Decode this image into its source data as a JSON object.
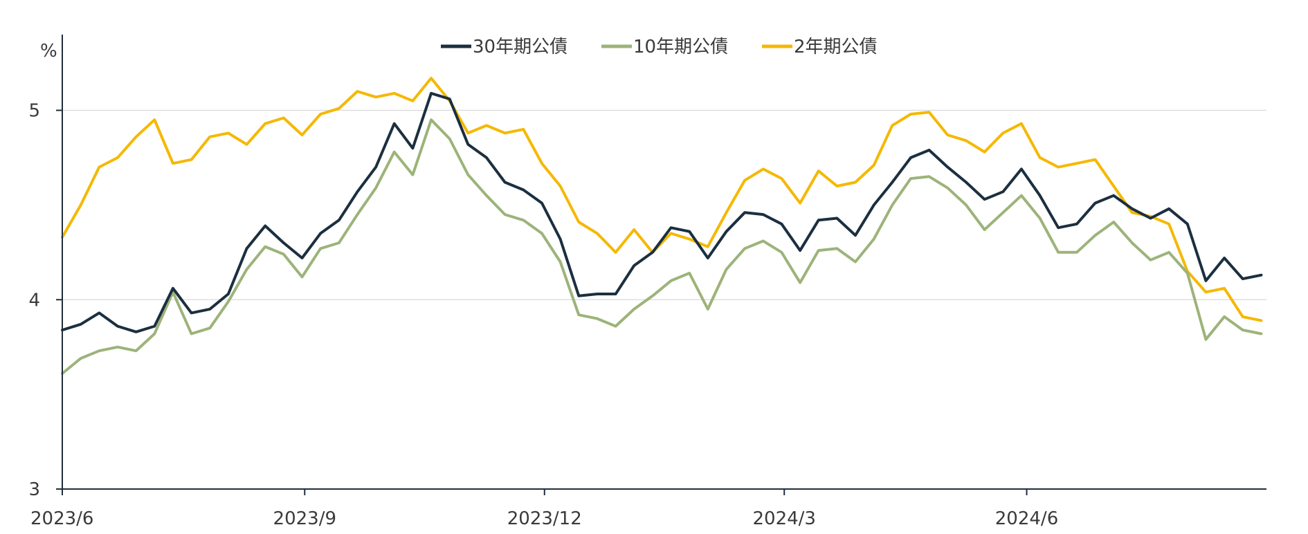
{
  "chart_data": {
    "type": "line",
    "ylabel": "%",
    "ylim": [
      3,
      5.4
    ],
    "yticks": [
      3,
      4,
      5
    ],
    "x_start": "2023/6",
    "x_end": "2024/8",
    "xticks": [
      "2023/6",
      "2023/9",
      "2023/12",
      "2024/3",
      "2024/6"
    ],
    "grid": "horizontal",
    "legend_position": "top-center",
    "series": [
      {
        "name": "30年期公債",
        "color": "#1b2f3f",
        "points": [
          [
            "2023/6/1",
            3.84
          ],
          [
            "2023/6/8",
            3.87
          ],
          [
            "2023/6/15",
            3.93
          ],
          [
            "2023/6/22",
            3.86
          ],
          [
            "2023/6/29",
            3.83
          ],
          [
            "2023/7/6",
            3.86
          ],
          [
            "2023/7/13",
            4.06
          ],
          [
            "2023/7/20",
            3.93
          ],
          [
            "2023/7/27",
            3.95
          ],
          [
            "2023/8/3",
            4.03
          ],
          [
            "2023/8/10",
            4.27
          ],
          [
            "2023/8/17",
            4.39
          ],
          [
            "2023/8/24",
            4.3
          ],
          [
            "2023/8/31",
            4.22
          ],
          [
            "2023/9/7",
            4.35
          ],
          [
            "2023/9/14",
            4.42
          ],
          [
            "2023/9/21",
            4.57
          ],
          [
            "2023/9/28",
            4.7
          ],
          [
            "2023/10/5",
            4.93
          ],
          [
            "2023/10/12",
            4.8
          ],
          [
            "2023/10/19",
            5.09
          ],
          [
            "2023/10/26",
            5.06
          ],
          [
            "2023/11/2",
            4.82
          ],
          [
            "2023/11/9",
            4.75
          ],
          [
            "2023/11/16",
            4.62
          ],
          [
            "2023/11/23",
            4.58
          ],
          [
            "2023/11/30",
            4.51
          ],
          [
            "2023/12/7",
            4.32
          ],
          [
            "2023/12/14",
            4.02
          ],
          [
            "2023/12/21",
            4.03
          ],
          [
            "2023/12/28",
            4.03
          ],
          [
            "2024/1/4",
            4.18
          ],
          [
            "2024/1/11",
            4.25
          ],
          [
            "2024/1/18",
            4.38
          ],
          [
            "2024/1/25",
            4.36
          ],
          [
            "2024/2/1",
            4.22
          ],
          [
            "2024/2/8",
            4.36
          ],
          [
            "2024/2/15",
            4.46
          ],
          [
            "2024/2/22",
            4.45
          ],
          [
            "2024/2/29",
            4.4
          ],
          [
            "2024/3/7",
            4.26
          ],
          [
            "2024/3/14",
            4.42
          ],
          [
            "2024/3/21",
            4.43
          ],
          [
            "2024/3/28",
            4.34
          ],
          [
            "2024/4/4",
            4.5
          ],
          [
            "2024/4/11",
            4.62
          ],
          [
            "2024/4/18",
            4.75
          ],
          [
            "2024/4/25",
            4.79
          ],
          [
            "2024/5/2",
            4.7
          ],
          [
            "2024/5/9",
            4.62
          ],
          [
            "2024/5/16",
            4.53
          ],
          [
            "2024/5/23",
            4.57
          ],
          [
            "2024/5/30",
            4.69
          ],
          [
            "2024/6/6",
            4.55
          ],
          [
            "2024/6/13",
            4.38
          ],
          [
            "2024/6/20",
            4.4
          ],
          [
            "2024/6/27",
            4.51
          ],
          [
            "2024/7/4",
            4.55
          ],
          [
            "2024/7/11",
            4.48
          ],
          [
            "2024/7/18",
            4.43
          ],
          [
            "2024/7/25",
            4.48
          ],
          [
            "2024/8/1",
            4.4
          ],
          [
            "2024/8/8",
            4.1
          ],
          [
            "2024/8/15",
            4.22
          ],
          [
            "2024/8/22",
            4.11
          ],
          [
            "2024/8/29",
            4.13
          ]
        ]
      },
      {
        "name": "10年期公債",
        "color": "#9db37a",
        "points": [
          [
            "2023/6/1",
            3.61
          ],
          [
            "2023/6/8",
            3.69
          ],
          [
            "2023/6/15",
            3.73
          ],
          [
            "2023/6/22",
            3.75
          ],
          [
            "2023/6/29",
            3.73
          ],
          [
            "2023/7/6",
            3.82
          ],
          [
            "2023/7/13",
            4.04
          ],
          [
            "2023/7/20",
            3.82
          ],
          [
            "2023/7/27",
            3.85
          ],
          [
            "2023/8/3",
            3.99
          ],
          [
            "2023/8/10",
            4.16
          ],
          [
            "2023/8/17",
            4.28
          ],
          [
            "2023/8/24",
            4.24
          ],
          [
            "2023/8/31",
            4.12
          ],
          [
            "2023/9/7",
            4.27
          ],
          [
            "2023/9/14",
            4.3
          ],
          [
            "2023/9/21",
            4.45
          ],
          [
            "2023/9/28",
            4.59
          ],
          [
            "2023/10/5",
            4.78
          ],
          [
            "2023/10/12",
            4.66
          ],
          [
            "2023/10/19",
            4.95
          ],
          [
            "2023/10/26",
            4.85
          ],
          [
            "2023/11/2",
            4.66
          ],
          [
            "2023/11/9",
            4.55
          ],
          [
            "2023/11/16",
            4.45
          ],
          [
            "2023/11/23",
            4.42
          ],
          [
            "2023/11/30",
            4.35
          ],
          [
            "2023/12/7",
            4.2
          ],
          [
            "2023/12/14",
            3.92
          ],
          [
            "2023/12/21",
            3.9
          ],
          [
            "2023/12/28",
            3.86
          ],
          [
            "2024/1/4",
            3.95
          ],
          [
            "2024/1/11",
            4.02
          ],
          [
            "2024/1/18",
            4.1
          ],
          [
            "2024/1/25",
            4.14
          ],
          [
            "2024/2/1",
            3.95
          ],
          [
            "2024/2/8",
            4.16
          ],
          [
            "2024/2/15",
            4.27
          ],
          [
            "2024/2/22",
            4.31
          ],
          [
            "2024/2/29",
            4.25
          ],
          [
            "2024/3/7",
            4.09
          ],
          [
            "2024/3/14",
            4.26
          ],
          [
            "2024/3/21",
            4.27
          ],
          [
            "2024/3/28",
            4.2
          ],
          [
            "2024/4/4",
            4.32
          ],
          [
            "2024/4/11",
            4.5
          ],
          [
            "2024/4/18",
            4.64
          ],
          [
            "2024/4/25",
            4.65
          ],
          [
            "2024/5/2",
            4.59
          ],
          [
            "2024/5/9",
            4.5
          ],
          [
            "2024/5/16",
            4.37
          ],
          [
            "2024/5/23",
            4.46
          ],
          [
            "2024/5/30",
            4.55
          ],
          [
            "2024/6/6",
            4.43
          ],
          [
            "2024/6/13",
            4.25
          ],
          [
            "2024/6/20",
            4.25
          ],
          [
            "2024/6/27",
            4.34
          ],
          [
            "2024/7/4",
            4.41
          ],
          [
            "2024/7/11",
            4.3
          ],
          [
            "2024/7/18",
            4.21
          ],
          [
            "2024/7/25",
            4.25
          ],
          [
            "2024/8/1",
            4.14
          ],
          [
            "2024/8/8",
            3.79
          ],
          [
            "2024/8/15",
            3.91
          ],
          [
            "2024/8/22",
            3.84
          ],
          [
            "2024/8/29",
            3.82
          ]
        ]
      },
      {
        "name": "2年期公債",
        "color": "#f5b800",
        "points": [
          [
            "2023/6/1",
            4.33
          ],
          [
            "2023/6/8",
            4.5
          ],
          [
            "2023/6/15",
            4.7
          ],
          [
            "2023/6/22",
            4.75
          ],
          [
            "2023/6/29",
            4.86
          ],
          [
            "2023/7/6",
            4.95
          ],
          [
            "2023/7/13",
            4.72
          ],
          [
            "2023/7/20",
            4.74
          ],
          [
            "2023/7/27",
            4.86
          ],
          [
            "2023/8/3",
            4.88
          ],
          [
            "2023/8/10",
            4.82
          ],
          [
            "2023/8/17",
            4.93
          ],
          [
            "2023/8/24",
            4.96
          ],
          [
            "2023/8/31",
            4.87
          ],
          [
            "2023/9/7",
            4.98
          ],
          [
            "2023/9/14",
            5.01
          ],
          [
            "2023/9/21",
            5.1
          ],
          [
            "2023/9/28",
            5.07
          ],
          [
            "2023/10/5",
            5.09
          ],
          [
            "2023/10/12",
            5.05
          ],
          [
            "2023/10/19",
            5.17
          ],
          [
            "2023/10/26",
            5.05
          ],
          [
            "2023/11/2",
            4.88
          ],
          [
            "2023/11/9",
            4.92
          ],
          [
            "2023/11/16",
            4.88
          ],
          [
            "2023/11/23",
            4.9
          ],
          [
            "2023/11/30",
            4.72
          ],
          [
            "2023/12/7",
            4.6
          ],
          [
            "2023/12/14",
            4.41
          ],
          [
            "2023/12/21",
            4.35
          ],
          [
            "2023/12/28",
            4.25
          ],
          [
            "2024/1/4",
            4.37
          ],
          [
            "2024/1/11",
            4.25
          ],
          [
            "2024/1/18",
            4.35
          ],
          [
            "2024/1/25",
            4.32
          ],
          [
            "2024/2/1",
            4.28
          ],
          [
            "2024/2/8",
            4.46
          ],
          [
            "2024/2/15",
            4.63
          ],
          [
            "2024/2/22",
            4.69
          ],
          [
            "2024/2/29",
            4.64
          ],
          [
            "2024/3/7",
            4.51
          ],
          [
            "2024/3/14",
            4.68
          ],
          [
            "2024/3/21",
            4.6
          ],
          [
            "2024/3/28",
            4.62
          ],
          [
            "2024/4/4",
            4.71
          ],
          [
            "2024/4/11",
            4.92
          ],
          [
            "2024/4/18",
            4.98
          ],
          [
            "2024/4/25",
            4.99
          ],
          [
            "2024/5/2",
            4.87
          ],
          [
            "2024/5/9",
            4.84
          ],
          [
            "2024/5/16",
            4.78
          ],
          [
            "2024/5/23",
            4.88
          ],
          [
            "2024/5/30",
            4.93
          ],
          [
            "2024/6/6",
            4.75
          ],
          [
            "2024/6/13",
            4.7
          ],
          [
            "2024/6/20",
            4.72
          ],
          [
            "2024/6/27",
            4.74
          ],
          [
            "2024/7/4",
            4.6
          ],
          [
            "2024/7/11",
            4.46
          ],
          [
            "2024/7/18",
            4.44
          ],
          [
            "2024/7/25",
            4.4
          ],
          [
            "2024/8/1",
            4.15
          ],
          [
            "2024/8/8",
            4.04
          ],
          [
            "2024/8/15",
            4.06
          ],
          [
            "2024/8/22",
            3.91
          ],
          [
            "2024/8/29",
            3.89
          ]
        ]
      }
    ]
  }
}
